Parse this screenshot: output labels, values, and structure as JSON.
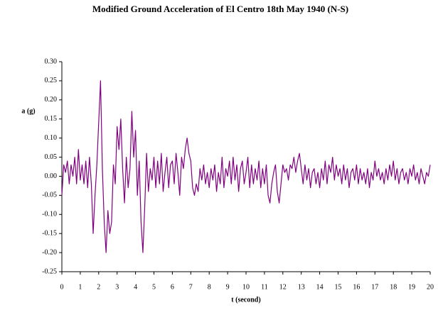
{
  "chart_data": {
    "type": "line",
    "title": "Modified Ground Acceleration of El Centro 18th May 1940 (N-S)",
    "ylabel": "a (g)",
    "xlabel": "t (second)",
    "x": [
      0,
      0.1,
      0.2,
      0.3,
      0.4,
      0.5,
      0.6,
      0.7,
      0.8,
      0.9,
      1,
      1.1,
      1.2,
      1.3,
      1.4,
      1.5,
      1.6,
      1.7,
      1.8,
      1.9,
      2,
      2.1,
      2.2,
      2.3,
      2.4,
      2.5,
      2.6,
      2.7,
      2.8,
      2.9,
      3,
      3.1,
      3.2,
      3.3,
      3.4,
      3.5,
      3.6,
      3.7,
      3.8,
      3.9,
      4,
      4.1,
      4.2,
      4.3,
      4.4,
      4.5,
      4.6,
      4.7,
      4.8,
      4.9,
      5,
      5.1,
      5.2,
      5.3,
      5.4,
      5.5,
      5.6,
      5.7,
      5.8,
      5.9,
      6,
      6.1,
      6.2,
      6.3,
      6.4,
      6.5,
      6.6,
      6.7,
      6.8,
      6.9,
      7,
      7.1,
      7.2,
      7.3,
      7.4,
      7.5,
      7.6,
      7.7,
      7.8,
      7.9,
      8,
      8.1,
      8.2,
      8.3,
      8.4,
      8.5,
      8.6,
      8.7,
      8.8,
      8.9,
      9,
      9.1,
      9.2,
      9.3,
      9.4,
      9.5,
      9.6,
      9.7,
      9.8,
      9.9,
      10,
      10.1,
      10.2,
      10.3,
      10.4,
      10.5,
      10.6,
      10.7,
      10.8,
      10.9,
      11,
      11.1,
      11.2,
      11.3,
      11.4,
      11.5,
      11.6,
      11.7,
      11.8,
      11.9,
      12,
      12.1,
      12.2,
      12.3,
      12.4,
      12.5,
      12.6,
      12.7,
      12.8,
      12.9,
      13,
      13.1,
      13.2,
      13.3,
      13.4,
      13.5,
      13.6,
      13.7,
      13.8,
      13.9,
      14,
      14.1,
      14.2,
      14.3,
      14.4,
      14.5,
      14.6,
      14.7,
      14.8,
      14.9,
      15,
      15.1,
      15.2,
      15.3,
      15.4,
      15.5,
      15.6,
      15.7,
      15.8,
      15.9,
      16,
      16.1,
      16.2,
      16.3,
      16.4,
      16.5,
      16.6,
      16.7,
      16.8,
      16.9,
      17,
      17.1,
      17.2,
      17.3,
      17.4,
      17.5,
      17.6,
      17.7,
      17.8,
      17.9,
      18,
      18.1,
      18.2,
      18.3,
      18.4,
      18.5,
      18.6,
      18.7,
      18.8,
      18.9,
      19,
      19.1,
      19.2,
      19.3,
      19.4,
      19.5,
      19.6,
      19.7,
      19.8,
      19.9,
      20
    ],
    "series": [
      {
        "color": "#800080",
        "values": [
          -0.05,
          0.03,
          0.01,
          0.04,
          -0.02,
          0.03,
          0.0,
          0.05,
          -0.02,
          0.07,
          -0.01,
          0.03,
          -0.02,
          0.04,
          -0.03,
          0.05,
          -0.02,
          -0.15,
          -0.05,
          0.03,
          0.14,
          0.25,
          0.02,
          -0.12,
          -0.2,
          -0.09,
          -0.15,
          -0.12,
          0.03,
          -0.02,
          0.13,
          0.07,
          0.15,
          0.02,
          -0.07,
          0.05,
          -0.03,
          0.02,
          0.17,
          0.05,
          0.12,
          -0.05,
          0.04,
          -0.12,
          -0.2,
          -0.08,
          0.06,
          -0.04,
          0.02,
          -0.01,
          0.05,
          -0.03,
          0.04,
          -0.02,
          0.06,
          -0.04,
          0.01,
          0.05,
          -0.03,
          0.03,
          0.04,
          -0.02,
          0.06,
          0.01,
          -0.05,
          0.05,
          0.02,
          0.07,
          0.1,
          0.06,
          0.04,
          -0.03,
          -0.05,
          -0.02,
          -0.04,
          0.02,
          -0.01,
          0.03,
          -0.02,
          0.01,
          -0.03,
          0.02,
          -0.01,
          0.03,
          -0.04,
          0.01,
          -0.02,
          0.05,
          -0.03,
          0.02,
          0.0,
          0.04,
          -0.02,
          0.05,
          -0.01,
          0.03,
          -0.04,
          0.02,
          0.04,
          -0.02,
          0.01,
          0.05,
          -0.03,
          0.03,
          -0.02,
          0.02,
          -0.01,
          0.04,
          -0.03,
          0.02,
          -0.02,
          0.03,
          -0.05,
          -0.07,
          -0.02,
          0.01,
          0.03,
          -0.04,
          -0.07,
          -0.02,
          0.03,
          0.01,
          0.02,
          -0.01,
          0.03,
          0.02,
          0.05,
          0.01,
          0.04,
          0.06,
          0.02,
          -0.02,
          0.03,
          -0.01,
          0.02,
          -0.03,
          0.01,
          0.02,
          -0.02,
          0.01,
          -0.03,
          0.02,
          -0.01,
          0.04,
          -0.02,
          0.03,
          0.01,
          0.05,
          -0.01,
          0.03,
          0.0,
          0.02,
          -0.02,
          0.03,
          -0.01,
          0.02,
          -0.03,
          0.01,
          0.02,
          -0.01,
          0.03,
          -0.02,
          0.02,
          -0.01,
          0.01,
          -0.02,
          0.02,
          -0.03,
          0.01,
          -0.01,
          0.04,
          0.0,
          0.02,
          -0.01,
          0.01,
          -0.02,
          0.02,
          -0.01,
          0.03,
          0.0,
          0.04,
          -0.01,
          0.02,
          -0.02,
          0.01,
          0.02,
          -0.01,
          0.01,
          -0.02,
          0.02,
          0.0,
          0.03,
          -0.01,
          0.01,
          -0.02,
          0.02,
          0.0,
          -0.02,
          0.01,
          0.0,
          0.03
        ]
      }
    ],
    "xlim": [
      0,
      20
    ],
    "xticks": [
      0,
      1,
      2,
      3,
      4,
      5,
      6,
      7,
      8,
      9,
      10,
      11,
      12,
      13,
      14,
      15,
      16,
      17,
      18,
      19,
      20
    ],
    "ylim": [
      -0.25,
      0.3
    ],
    "yticks": [
      {
        "value": -0.25,
        "label": "-0.25"
      },
      {
        "value": -0.2,
        "label": "-0.20"
      },
      {
        "value": -0.15,
        "label": "-0.15"
      },
      {
        "value": -0.1,
        "label": "-0.10"
      },
      {
        "value": -0.05,
        "label": "-0.05"
      },
      {
        "value": 0,
        "label": "0.00"
      },
      {
        "value": 0.05,
        "label": "0.05"
      },
      {
        "value": 0.1,
        "label": "0.10"
      },
      {
        "value": 0.15,
        "label": "0.15"
      },
      {
        "value": 0.2,
        "label": "0.20"
      },
      {
        "value": 0.25,
        "label": "0.25"
      },
      {
        "value": 0.3,
        "label": "0.30"
      }
    ],
    "grid": false
  }
}
